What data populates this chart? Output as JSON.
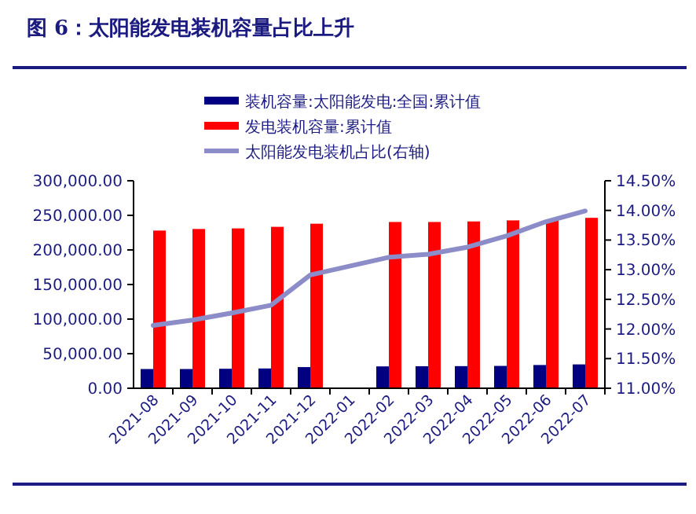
{
  "chart_data": {
    "type": "bar",
    "title": "图 6：太阳能发电装机容量占比上升",
    "categories": [
      "2021-08",
      "2021-09",
      "2021-10",
      "2021-11",
      "2021-12",
      "2022-01",
      "2022-02",
      "2022-03",
      "2022-04",
      "2022-05",
      "2022-06",
      "2022-07"
    ],
    "series": [
      {
        "name": "装机容量:太阳能发电:全国:累计值",
        "color": "#000080",
        "values": [
          27800,
          27800,
          28200,
          28600,
          30600,
          null,
          31600,
          31800,
          32000,
          32300,
          33600,
          34500
        ]
      },
      {
        "name": "发电装机容量:累计值",
        "color": "#ff0000",
        "values": [
          228000,
          230300,
          231100,
          233400,
          237900,
          null,
          240400,
          240400,
          241200,
          242700,
          242900,
          246400
        ]
      },
      {
        "name": "太阳能发电装机占比(右轴)",
        "color": "#8c8cc8",
        "type": "line",
        "axis": "y2",
        "values": [
          12.06,
          12.15,
          12.27,
          12.4,
          12.91,
          null,
          13.21,
          13.26,
          13.38,
          13.57,
          13.81,
          13.99
        ]
      }
    ],
    "ylim": [
      0,
      300000
    ],
    "yticks": [
      {
        "value": 0,
        "label": "0.00"
      },
      {
        "value": 50000,
        "label": "50,000.00"
      },
      {
        "value": 100000,
        "label": "100,000.00"
      },
      {
        "value": 150000,
        "label": "150,000.00"
      },
      {
        "value": 200000,
        "label": "200,000.00"
      },
      {
        "value": 250000,
        "label": "250,000.00"
      },
      {
        "value": 300000,
        "label": "300,000.00"
      }
    ],
    "y2lim": [
      11,
      14.5
    ],
    "y2ticks": [
      {
        "value": 11,
        "label": "11.00%"
      },
      {
        "value": 11.5,
        "label": "11.50%"
      },
      {
        "value": 12,
        "label": "12.00%"
      },
      {
        "value": 12.5,
        "label": "12.50%"
      },
      {
        "value": 13,
        "label": "13.00%"
      },
      {
        "value": 13.5,
        "label": "13.50%"
      },
      {
        "value": 14,
        "label": "14.00%"
      },
      {
        "value": 14.5,
        "label": "14.50%"
      }
    ],
    "legend": "top",
    "grid": false,
    "marker": "none",
    "line_style": "solid"
  }
}
